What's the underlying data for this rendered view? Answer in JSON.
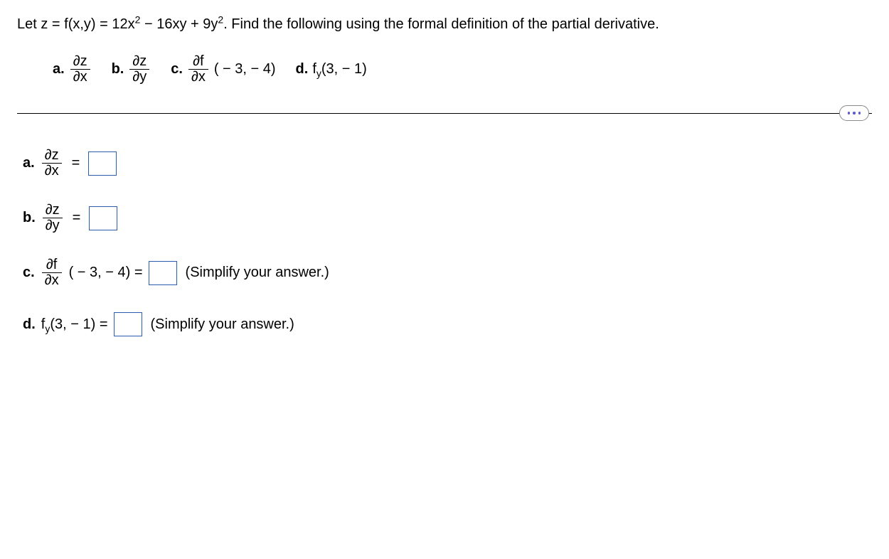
{
  "problem": {
    "prefix": "Let z = f(x,y) = 12x",
    "exp1": "2",
    "mid": " − 16xy + 9y",
    "exp2": "2",
    "suffix": ". Find the following using the formal definition of the partial derivative."
  },
  "opts": {
    "a_label": "a.",
    "b_label": "b.",
    "c_label": "c.",
    "d_label": "d.",
    "dz": "∂z",
    "dx": "∂x",
    "dy": "∂y",
    "df": "∂f",
    "c_arg": "( − 3, − 4)",
    "d_text": "f",
    "d_sub": "y",
    "d_arg": "(3, − 1)"
  },
  "answers": {
    "a": {
      "label": "a.",
      "num": "∂z",
      "den": "∂x",
      "eq": "="
    },
    "b": {
      "label": "b.",
      "num": "∂z",
      "den": "∂y",
      "eq": "="
    },
    "c": {
      "label": "c.",
      "num": "∂f",
      "den": "∂x",
      "arg": "( − 3, − 4) =",
      "hint": "(Simplify your answer.)"
    },
    "d": {
      "label": "d.",
      "f": "f",
      "sub": "y",
      "arg": "(3, − 1) =",
      "hint": "(Simplify your answer.)"
    }
  }
}
